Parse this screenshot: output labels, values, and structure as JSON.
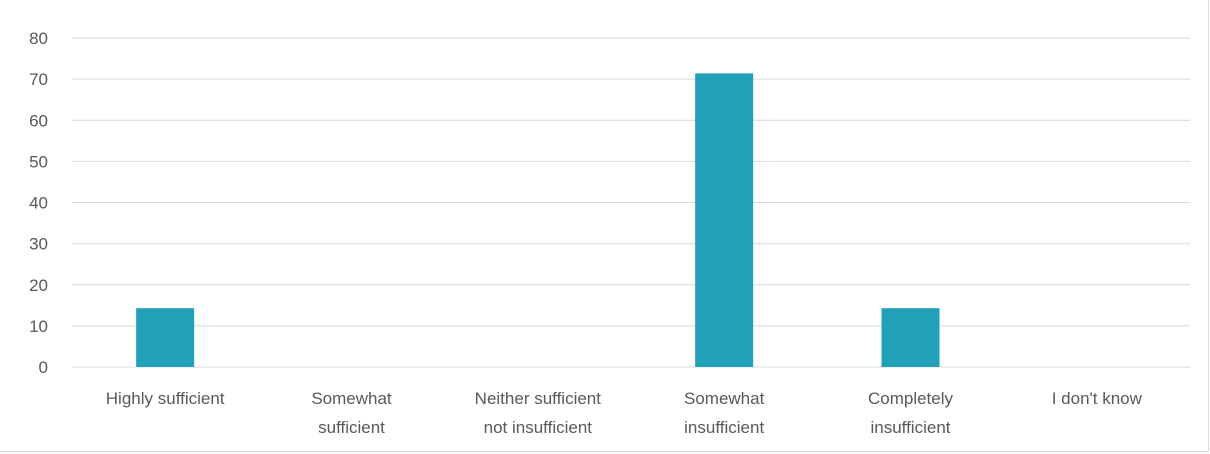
{
  "chart_data": {
    "type": "bar",
    "categories": [
      [
        "Highly sufficient"
      ],
      [
        "Somewhat",
        "sufficient"
      ],
      [
        "Neither sufficient",
        "not insufficient"
      ],
      [
        "Somewhat",
        "insufficient"
      ],
      [
        "Completely",
        "insufficient"
      ],
      [
        "I don't know"
      ]
    ],
    "values": [
      14.3,
      0,
      0,
      71.4,
      14.3,
      0
    ],
    "ylim": [
      0,
      80
    ],
    "yticks": [
      "0",
      "10",
      "20",
      "30",
      "40",
      "50",
      "60",
      "70",
      "80"
    ],
    "grid": true,
    "bar_color": "#21a0b7",
    "grid_color": "#d9d9d9"
  }
}
